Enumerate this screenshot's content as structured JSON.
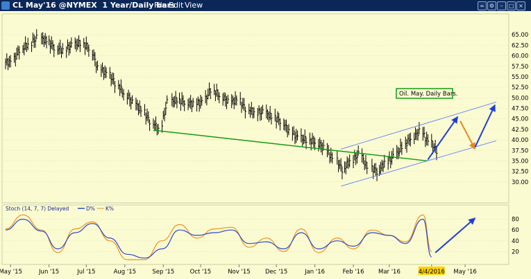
{
  "window": {
    "title": "CL May'16 @NYMEX",
    "subtitle": "1 Year/Daily bars",
    "menu": [
      "File",
      "Edit",
      "View"
    ]
  },
  "colors": {
    "background": "#fbfbd2",
    "price_bars": "#000000",
    "support_line": "#139b13",
    "channel": "#5b7fff",
    "projection": "#1f3fd8",
    "orange_arrow": "#e8871e",
    "d_line": "#2b48c9",
    "k_line": "#f0901f",
    "date_highlight": "#ffd400"
  },
  "chart_data": [
    {
      "type": "line",
      "annotation": "Oil. May. Daily Bars.",
      "y_axis_side": "right",
      "ylim": [
        27.5,
        67.5
      ],
      "y_ticks": [
        "30.00",
        "32.50",
        "35.00",
        "37.50",
        "40.00",
        "42.50",
        "45.00",
        "47.50",
        "50.00",
        "52.50",
        "55.00",
        "57.50",
        "60.00",
        "62.50",
        "65.00"
      ],
      "x_ticks": [
        "May '15",
        "Jun '15",
        "Jul '15",
        "Aug '15",
        "Sep '15",
        "Oct '15",
        "Nov '15",
        "Dec '15",
        "Jan '16",
        "Feb '16",
        "Mar '16",
        "4/4/2016",
        "May '16"
      ],
      "x_highlight": "4/4/2016",
      "series": [
        {
          "style": "ohlc-bars",
          "x": [
            "2015-04-27",
            "2015-05-04",
            "2015-05-11",
            "2015-05-18",
            "2015-05-26",
            "2015-06-01",
            "2015-06-08",
            "2015-06-15",
            "2015-06-22",
            "2015-06-29",
            "2015-07-06",
            "2015-07-13",
            "2015-07-20",
            "2015-07-27",
            "2015-08-03",
            "2015-08-10",
            "2015-08-17",
            "2015-08-24",
            "2015-08-31",
            "2015-09-08",
            "2015-09-14",
            "2015-09-21",
            "2015-09-28",
            "2015-10-05",
            "2015-10-12",
            "2015-10-19",
            "2015-10-26",
            "2015-11-02",
            "2015-11-09",
            "2015-11-16",
            "2015-11-23",
            "2015-11-30",
            "2015-12-07",
            "2015-12-14",
            "2015-12-21",
            "2015-12-28",
            "2016-01-04",
            "2016-01-11",
            "2016-01-19",
            "2016-01-25",
            "2016-02-01",
            "2016-02-08",
            "2016-02-16",
            "2016-02-22",
            "2016-02-29",
            "2016-03-07",
            "2016-03-14",
            "2016-03-21",
            "2016-03-28",
            "2016-04-04"
          ],
          "close": [
            58.5,
            61.5,
            62.8,
            64.2,
            63.5,
            62.0,
            61.3,
            62.5,
            63.0,
            61.8,
            57.0,
            55.8,
            53.5,
            51.0,
            48.8,
            47.0,
            44.5,
            42.5,
            49.0,
            49.5,
            49.0,
            48.5,
            49.0,
            52.0,
            50.5,
            49.0,
            49.5,
            47.5,
            46.5,
            46.5,
            45.5,
            44.5,
            42.0,
            40.5,
            40.0,
            39.5,
            38.0,
            35.5,
            33.0,
            35.0,
            36.5,
            33.5,
            32.5,
            34.5,
            36.0,
            38.5,
            40.5,
            42.0,
            39.5,
            37.5
          ]
        },
        {
          "name": "support",
          "style": "line",
          "x": [
            "2015-08-24",
            "2016-04-01"
          ],
          "y": [
            42.3,
            35.0
          ]
        },
        {
          "name": "channel-upper",
          "style": "line",
          "x": [
            "2016-01-22",
            "2016-05-26"
          ],
          "y": [
            37.8,
            49.0
          ]
        },
        {
          "name": "channel-lower",
          "style": "line",
          "x": [
            "2016-01-22",
            "2016-05-26"
          ],
          "y": [
            29.0,
            39.8
          ]
        },
        {
          "name": "projection-1",
          "style": "arrow",
          "x": [
            "2016-04-01",
            "2016-04-25"
          ],
          "y": [
            35.3,
            45.5
          ]
        },
        {
          "name": "projection-2",
          "style": "arrow",
          "x": [
            "2016-04-27",
            "2016-05-09"
          ],
          "y": [
            44.5,
            37.8
          ]
        },
        {
          "name": "projection-3",
          "style": "arrow",
          "x": [
            "2016-05-09",
            "2016-05-25"
          ],
          "y": [
            38.3,
            48.3
          ]
        }
      ]
    },
    {
      "type": "line",
      "title": "Stoch (14, 7, 7) Delayed",
      "legend": [
        "D%",
        "K%"
      ],
      "ylim": [
        0,
        100
      ],
      "y_ticks": [
        "20",
        "40",
        "60",
        "80"
      ],
      "series": [
        {
          "name": "D%",
          "x": [
            "2015-04-27",
            "2015-05-11",
            "2015-05-26",
            "2015-06-08",
            "2015-06-22",
            "2015-07-06",
            "2015-07-20",
            "2015-08-03",
            "2015-08-17",
            "2015-08-31",
            "2015-09-14",
            "2015-09-28",
            "2015-10-12",
            "2015-10-26",
            "2015-11-09",
            "2015-11-23",
            "2015-12-07",
            "2015-12-21",
            "2016-01-04",
            "2016-01-19",
            "2016-02-01",
            "2016-02-16",
            "2016-03-01",
            "2016-03-14",
            "2016-03-28",
            "2016-04-04"
          ],
          "y": [
            60,
            80,
            58,
            25,
            55,
            72,
            45,
            15,
            8,
            25,
            60,
            50,
            55,
            60,
            35,
            38,
            25,
            55,
            25,
            40,
            30,
            55,
            50,
            35,
            80,
            10
          ]
        },
        {
          "name": "K%",
          "x": [
            "2015-04-27",
            "2015-05-11",
            "2015-05-26",
            "2015-06-08",
            "2015-06-22",
            "2015-07-06",
            "2015-07-20",
            "2015-08-03",
            "2015-08-17",
            "2015-08-31",
            "2015-09-14",
            "2015-09-28",
            "2015-10-12",
            "2015-10-26",
            "2015-11-09",
            "2015-11-23",
            "2015-12-07",
            "2015-12-21",
            "2016-01-04",
            "2016-01-19",
            "2016-02-01",
            "2016-02-16",
            "2016-03-01",
            "2016-03-14",
            "2016-03-28",
            "2016-04-04"
          ],
          "y": [
            62,
            88,
            60,
            18,
            62,
            75,
            40,
            5,
            5,
            40,
            70,
            45,
            62,
            65,
            28,
            45,
            20,
            62,
            18,
            45,
            25,
            60,
            50,
            38,
            88,
            20
          ]
        },
        {
          "name": "projection",
          "style": "arrow",
          "x": [
            "2016-04-07",
            "2016-05-09"
          ],
          "y": [
            18,
            82
          ]
        }
      ]
    }
  ]
}
